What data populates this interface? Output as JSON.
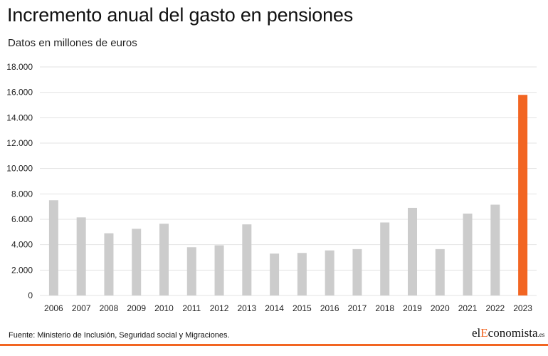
{
  "title": "Incremento anual del gasto en pensiones",
  "subtitle": "Datos en millones de euros",
  "source": "Fuente: Ministerio de Inclusión, Seguridad social y Migraciones.",
  "logo": {
    "part1": "el",
    "part2": "Economista",
    "part3": ".es"
  },
  "colors": {
    "bar": "#cccccc",
    "highlight": "#f26522",
    "grid": "#e3e3e3",
    "accent": "#f26522"
  },
  "chart_data": {
    "type": "bar",
    "categories": [
      "2006",
      "2007",
      "2008",
      "2009",
      "2010",
      "2011",
      "2012",
      "2013",
      "2014",
      "2015",
      "2016",
      "2017",
      "2018",
      "2019",
      "2020",
      "2021",
      "2022",
      "2023"
    ],
    "values": [
      7500,
      6150,
      4900,
      5250,
      5650,
      3800,
      3950,
      5600,
      3300,
      3350,
      3550,
      3650,
      5750,
      6900,
      3650,
      6450,
      7150,
      15800
    ],
    "highlight_category": "2023",
    "ylim": [
      0,
      18000
    ],
    "yticks": [
      0,
      2000,
      4000,
      6000,
      8000,
      10000,
      12000,
      14000,
      16000,
      18000
    ],
    "ytick_labels": [
      "0",
      "2.000",
      "4.000",
      "6.000",
      "8.000",
      "10.000",
      "12.000",
      "14.000",
      "16.000",
      "18.000"
    ],
    "grid": true,
    "legend": "none"
  }
}
